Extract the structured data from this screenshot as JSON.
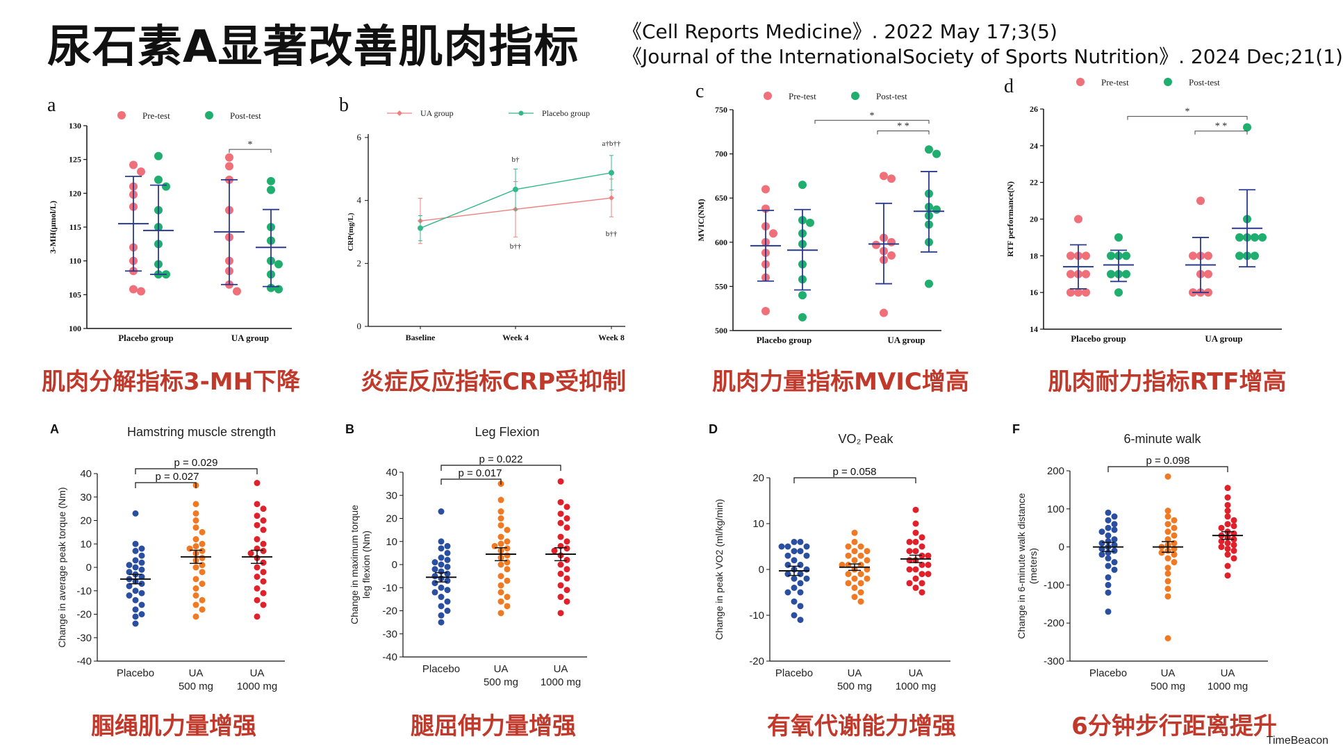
{
  "header": {
    "title": "尿石素A显著改善肌肉指标",
    "ref1": "《Cell Reports Medicine》. 2022 May 17;3(5)",
    "ref2": "《Journal of the InternationalSociety of Sports Nutrition》. 2024 Dec;21(1)"
  },
  "captions": {
    "a": "肌肉分解指标3-MH下降",
    "b": "炎症反应指标CRP受抑制",
    "c": "肌肉力量指标MVIC增高",
    "d": "肌肉耐力指标RTF增高",
    "A": "腘绳肌力量增强",
    "B": "腿屈伸力量增强",
    "D": "有氧代谢能力增强",
    "F": "6分钟步行距离提升"
  },
  "watermark": "TimeBeacon",
  "colors": {
    "pre": "#f0707a",
    "post": "#1fae6e",
    "meanbar": "#2a3990",
    "ua_line": "#f08080",
    "placebo_line": "#33b88a",
    "placebo_dot": "#2a4fa0",
    "ua500_dot": "#f07a24",
    "ua1000_dot": "#e0202a"
  },
  "chart_data": [
    {
      "id": "a",
      "type": "scatter",
      "panel_label": "a",
      "ylabel": "3-MH(μmol/L)",
      "ylim": [
        100,
        130
      ],
      "yticks": [
        100,
        105,
        110,
        115,
        120,
        125,
        130
      ],
      "legend": [
        "Pre-test",
        "Post-test"
      ],
      "categories": [
        "Placebo group",
        "UA group"
      ],
      "groups": [
        {
          "category": "Placebo group",
          "series": "Pre-test",
          "mean": 115.5,
          "sd": [
            108.5,
            122.5
          ],
          "values": [
            124.2,
            123.2,
            121.0,
            119.8,
            118.0,
            112.0,
            110.0,
            108.5,
            105.8,
            105.5
          ]
        },
        {
          "category": "Placebo group",
          "series": "Post-test",
          "mean": 114.5,
          "sd": [
            108.0,
            121.2
          ],
          "values": [
            125.5,
            122.0,
            121.0,
            117.5,
            115.0,
            112.5,
            109.5,
            108.0,
            108.0
          ]
        },
        {
          "category": "UA group",
          "series": "Pre-test",
          "mean": 114.3,
          "sd": [
            106.5,
            122.0
          ],
          "values": [
            125.3,
            124.0,
            122.0,
            117.5,
            113.5,
            110.0,
            108.5,
            106.5,
            105.5
          ]
        },
        {
          "category": "UA group",
          "series": "Post-test",
          "mean": 112.0,
          "sd": [
            106.2,
            117.6
          ],
          "values": [
            121.8,
            120.5,
            115.0,
            113.0,
            110.0,
            109.5,
            108.0,
            106.0,
            105.8
          ]
        }
      ],
      "annotations": [
        {
          "text": "*",
          "from": "UA group Pre-test",
          "to": "UA group Post-test",
          "y": 126.5
        }
      ]
    },
    {
      "id": "b",
      "type": "line",
      "panel_label": "b",
      "ylabel": "CRP(mg/L)",
      "ylim": [
        0,
        6
      ],
      "yticks": [
        0,
        2,
        4,
        6
      ],
      "categories": [
        "Baseline",
        "Week 4",
        "Week 8"
      ],
      "series": [
        {
          "name": "UA group",
          "values": [
            3.35,
            3.72,
            4.08
          ],
          "err": [
            0.72,
            0.88,
            0.6
          ]
        },
        {
          "name": "Placebo group",
          "values": [
            3.12,
            4.35,
            4.88
          ],
          "err": [
            0.4,
            0.65,
            0.55
          ]
        }
      ],
      "annotations": [
        "b†",
        "b††",
        "a†b††",
        "b††"
      ]
    },
    {
      "id": "c",
      "type": "scatter",
      "panel_label": "c",
      "ylabel": "MVIC(NM)",
      "ylim": [
        500,
        750
      ],
      "yticks": [
        500,
        550,
        600,
        650,
        700,
        750
      ],
      "legend": [
        "Pre-test",
        "Post-test"
      ],
      "categories": [
        "Placebo group",
        "UA group"
      ],
      "groups": [
        {
          "category": "Placebo group",
          "series": "Pre-test",
          "mean": 596,
          "sd": [
            556,
            636
          ],
          "values": [
            660,
            638,
            618,
            610,
            600,
            588,
            575,
            560,
            522
          ]
        },
        {
          "category": "Placebo group",
          "series": "Post-test",
          "mean": 591,
          "sd": [
            546,
            637
          ],
          "values": [
            665,
            625,
            622,
            610,
            598,
            575,
            558,
            540,
            515
          ]
        },
        {
          "category": "UA group",
          "series": "Pre-test",
          "mean": 598,
          "sd": [
            553,
            644
          ],
          "values": [
            675,
            672,
            605,
            600,
            597,
            590,
            585,
            580,
            520
          ]
        },
        {
          "category": "UA group",
          "series": "Post-test",
          "mean": 635,
          "sd": [
            589,
            680
          ],
          "values": [
            705,
            700,
            655,
            640,
            637,
            630,
            620,
            600,
            553
          ]
        }
      ],
      "annotations": [
        {
          "text": "*",
          "y": 738
        },
        {
          "text": "* *",
          "y": 726
        }
      ]
    },
    {
      "id": "d",
      "type": "scatter",
      "panel_label": "d",
      "ylabel": "RTF performance(N)",
      "ylim": [
        14,
        26
      ],
      "yticks": [
        14,
        16,
        18,
        20,
        22,
        24,
        26
      ],
      "legend": [
        "Pre-test",
        "Post-test"
      ],
      "categories": [
        "Placebo group",
        "UA group"
      ],
      "groups": [
        {
          "category": "Placebo group",
          "series": "Pre-test",
          "mean": 17.4,
          "sd": [
            16.2,
            18.6
          ],
          "values": [
            20,
            18,
            18,
            18,
            17,
            17,
            17,
            16,
            16,
            16
          ]
        },
        {
          "category": "Placebo group",
          "series": "Post-test",
          "mean": 17.5,
          "sd": [
            16.6,
            18.3
          ],
          "values": [
            19,
            18,
            18,
            18,
            17,
            17,
            17,
            16
          ]
        },
        {
          "category": "UA group",
          "series": "Pre-test",
          "mean": 17.5,
          "sd": [
            16.0,
            19.0
          ],
          "values": [
            21,
            18,
            18,
            18,
            17,
            17,
            16,
            16,
            16
          ]
        },
        {
          "category": "UA group",
          "series": "Post-test",
          "mean": 19.5,
          "sd": [
            17.4,
            21.6
          ],
          "values": [
            25,
            20,
            19,
            19,
            19,
            19,
            18,
            18,
            18
          ]
        }
      ],
      "annotations": [
        {
          "text": "*",
          "y": 25.6
        },
        {
          "text": "* *",
          "y": 24.8
        }
      ]
    },
    {
      "id": "A",
      "type": "scatter",
      "panel_label": "A",
      "title": "Hamstring muscle strength",
      "ylabel": "Change in average peak torque (Nm)",
      "ylim": [
        -40,
        40
      ],
      "yticks": [
        -40,
        -30,
        -20,
        -10,
        0,
        10,
        20,
        30,
        40
      ],
      "categories": [
        "Placebo",
        "UA 500 mg",
        "UA 1000 mg"
      ],
      "groups": [
        {
          "category": "Placebo",
          "mean": -5.0,
          "sem": 2.0,
          "values": [
            23,
            10,
            8,
            7,
            5,
            3,
            2,
            1,
            0,
            -1,
            -2,
            -3,
            -4,
            -5,
            -6,
            -7,
            -8,
            -10,
            -11,
            -12,
            -14,
            -16,
            -18,
            -20,
            -21,
            -24
          ]
        },
        {
          "category": "UA 500 mg",
          "mean": 4.5,
          "sem": 2.8,
          "values": [
            35,
            27,
            23,
            20,
            17,
            15,
            12,
            10,
            9,
            8,
            7,
            6,
            4,
            3,
            1,
            0,
            -2,
            -5,
            -7,
            -9,
            -12,
            -14,
            -16,
            -18,
            -21
          ]
        },
        {
          "category": "UA 1000 mg",
          "mean": 4.5,
          "sem": 2.8,
          "values": [
            36,
            27,
            25,
            22,
            20,
            18,
            16,
            12,
            10,
            8,
            7,
            6,
            4,
            2,
            0,
            -2,
            -4,
            -6,
            -9,
            -11,
            -14,
            -16,
            -21
          ]
        }
      ],
      "annotations": [
        {
          "text": "p = 0.029"
        },
        {
          "text": "p = 0.027"
        }
      ]
    },
    {
      "id": "B",
      "type": "scatter",
      "panel_label": "B",
      "title": "Leg Flexion",
      "ylabel": [
        "Change in maximum torque",
        "leg flexion (Nm)"
      ],
      "ylim": [
        -40,
        40
      ],
      "yticks": [
        -40,
        -30,
        -20,
        -10,
        0,
        10,
        20,
        30,
        40
      ],
      "categories": [
        "Placebo",
        "UA 500 mg",
        "UA 1000 mg"
      ],
      "groups": [
        {
          "category": "Placebo",
          "mean": -5.5,
          "sem": 2.0,
          "values": [
            23,
            10,
            8,
            7,
            5,
            3,
            2,
            1,
            0,
            -1,
            -2,
            -3,
            -4,
            -5,
            -6,
            -7,
            -8,
            -10,
            -11,
            -12,
            -14,
            -16,
            -18,
            -20,
            -22,
            -25
          ]
        },
        {
          "category": "UA 500 mg",
          "mean": 4.5,
          "sem": 2.8,
          "values": [
            35,
            28,
            23,
            20,
            17,
            15,
            12,
            10,
            9,
            8,
            7,
            6,
            4,
            3,
            1,
            0,
            -2,
            -5,
            -7,
            -9,
            -12,
            -14,
            -16,
            -18,
            -21
          ]
        },
        {
          "category": "UA 1000 mg",
          "mean": 4.5,
          "sem": 2.8,
          "values": [
            36,
            27,
            25,
            22,
            20,
            18,
            16,
            12,
            10,
            8,
            7,
            6,
            4,
            2,
            0,
            -2,
            -4,
            -6,
            -9,
            -11,
            -14,
            -16,
            -21
          ]
        }
      ],
      "annotations": [
        {
          "text": "p = 0.022"
        },
        {
          "text": "p = 0.017"
        }
      ]
    },
    {
      "id": "D",
      "type": "scatter",
      "panel_label": "D",
      "title": "VO₂ Peak",
      "ylabel": "Change in peak VO2 (ml/kg/min)",
      "ylim": [
        -20,
        20
      ],
      "yticks": [
        -20,
        -10,
        0,
        10,
        20
      ],
      "categories": [
        "Placebo",
        "UA 500 mg",
        "UA 1000 mg"
      ],
      "groups": [
        {
          "category": "Placebo",
          "mean": -0.3,
          "sem": 1.0,
          "values": [
            6,
            6,
            5,
            5,
            5,
            4,
            4,
            3,
            3,
            2,
            1,
            1,
            0,
            0,
            -1,
            -1,
            -2,
            -2,
            -3,
            -4,
            -5,
            -5,
            -7,
            -8,
            -10,
            -11
          ]
        },
        {
          "category": "UA 500 mg",
          "mean": 0.5,
          "sem": 0.7,
          "values": [
            8,
            6,
            5,
            5,
            4,
            4,
            3,
            3,
            2,
            2,
            1,
            1,
            1,
            0,
            0,
            -1,
            -1,
            -2,
            -2,
            -3,
            -3,
            -4,
            -5,
            -6,
            -7
          ]
        },
        {
          "category": "UA 1000 mg",
          "mean": 2.3,
          "sem": 0.8,
          "values": [
            13,
            10,
            8,
            7,
            6,
            6,
            5,
            4,
            4,
            3,
            3,
            2,
            2,
            1,
            1,
            0,
            0,
            -1,
            -1,
            -2,
            -3,
            -3,
            -4,
            -5
          ]
        }
      ],
      "annotations": [
        {
          "text": "p = 0.058"
        }
      ]
    },
    {
      "id": "F",
      "type": "scatter",
      "panel_label": "F",
      "title": "6-minute walk",
      "ylabel": [
        "Change in 6-minute walk distance",
        "(meters)"
      ],
      "ylim": [
        -300,
        200
      ],
      "yticks": [
        -300,
        -200,
        -100,
        0,
        100,
        200
      ],
      "categories": [
        "Placebo",
        "UA 500 mg",
        "UA 1000 mg"
      ],
      "groups": [
        {
          "category": "Placebo",
          "mean": 0,
          "sem": 12,
          "values": [
            90,
            80,
            70,
            60,
            50,
            45,
            40,
            30,
            20,
            15,
            10,
            5,
            0,
            -5,
            -10,
            -15,
            -20,
            -30,
            -40,
            -50,
            -60,
            -80,
            -100,
            -120,
            -170
          ]
        },
        {
          "category": "UA 500 mg",
          "mean": 0,
          "sem": 14,
          "values": [
            185,
            95,
            80,
            70,
            60,
            50,
            40,
            30,
            20,
            10,
            5,
            0,
            -5,
            -10,
            -15,
            -20,
            -30,
            -40,
            -55,
            -70,
            -90,
            -110,
            -130,
            -240
          ]
        },
        {
          "category": "UA 1000 mg",
          "mean": 30,
          "sem": 10,
          "values": [
            155,
            130,
            110,
            95,
            80,
            70,
            60,
            55,
            50,
            40,
            35,
            30,
            25,
            20,
            15,
            10,
            5,
            0,
            -5,
            -10,
            -20,
            -30,
            -50,
            -75
          ]
        }
      ],
      "annotations": [
        {
          "text": "p = 0.098"
        }
      ]
    }
  ]
}
